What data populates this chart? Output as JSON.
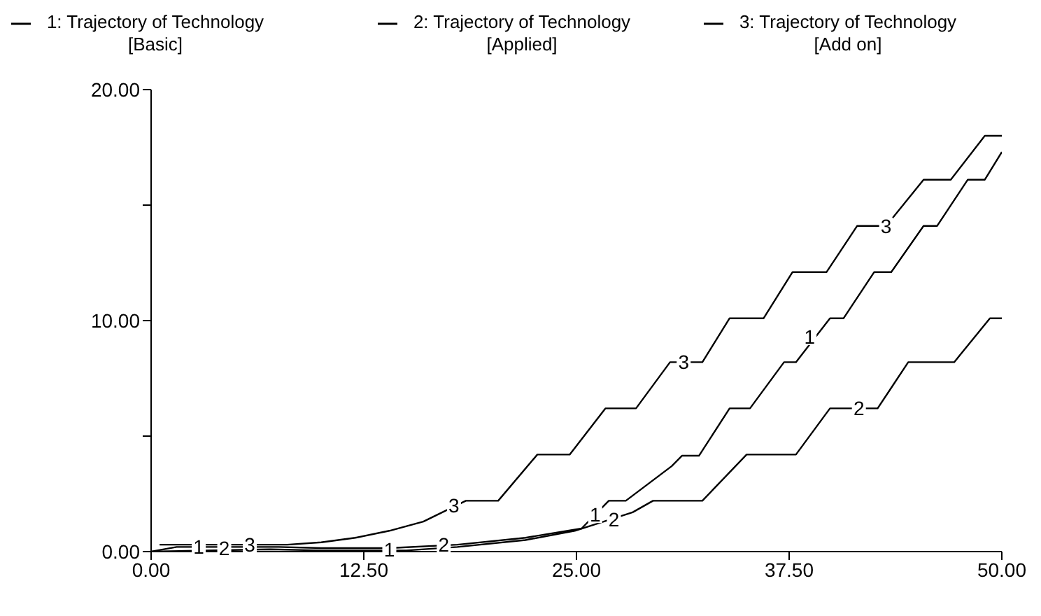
{
  "chart_data": {
    "type": "line",
    "legend": "top",
    "series": [
      {
        "name": "1: Trajectory of Technology [Basic]",
        "color": "#000000",
        "x": [
          0,
          1.5,
          7.5,
          10,
          14,
          18,
          22,
          25.3,
          26.9,
          27.9,
          30.6,
          31.2,
          32.2,
          34,
          35.2,
          37.2,
          37.9,
          39.9,
          40.7,
          42.5,
          43.5,
          45.4,
          46.2,
          48,
          49,
          50
        ],
        "values": [
          0,
          0.2,
          0.2,
          0.15,
          0.15,
          0.3,
          0.6,
          1.0,
          2.2,
          2.2,
          3.7,
          4.15,
          4.15,
          6.2,
          6.2,
          8.2,
          8.2,
          10.1,
          10.1,
          12.1,
          12.1,
          14.1,
          14.1,
          16.1,
          16.1,
          17.3
        ]
      },
      {
        "name": "2: Trajectory of Technology [Applied]",
        "color": "#000000",
        "x": [
          0,
          7,
          10,
          15,
          18,
          22,
          24.9,
          28.3,
          29.5,
          32.4,
          35,
          37.9,
          39.9,
          42.7,
          44.5,
          47.2,
          49.3,
          50
        ],
        "values": [
          0,
          0.1,
          0.05,
          0.05,
          0.2,
          0.5,
          0.9,
          1.7,
          2.2,
          2.2,
          4.2,
          4.2,
          6.2,
          6.2,
          8.2,
          8.2,
          10.1,
          10.1
        ]
      },
      {
        "name": "3: Trajectory of Technology [Add on]",
        "color": "#000000",
        "x": [
          0.5,
          8,
          10,
          12,
          14,
          16,
          18.5,
          20.4,
          22.7,
          24.6,
          26.7,
          28.5,
          30.5,
          32.4,
          34,
          36,
          37.7,
          39.7,
          41.5,
          43.2,
          45.4,
          47,
          49,
          50
        ],
        "values": [
          0.3,
          0.3,
          0.4,
          0.6,
          0.9,
          1.3,
          2.2,
          2.2,
          4.2,
          4.2,
          6.2,
          6.2,
          8.2,
          8.2,
          10.1,
          10.1,
          12.1,
          12.1,
          14.1,
          14.1,
          16.1,
          16.1,
          18,
          18
        ]
      }
    ],
    "xlim": [
      0,
      50
    ],
    "xticks": [
      {
        "value": 0,
        "label": "0.00"
      },
      {
        "value": 12.5,
        "label": "12.50"
      },
      {
        "value": 25,
        "label": "25.00"
      },
      {
        "value": 37.5,
        "label": "37.50"
      },
      {
        "value": 50,
        "label": "50.00"
      }
    ],
    "ylim": [
      0,
      20
    ],
    "yticks": [
      {
        "value": 0,
        "label": "0.00"
      },
      {
        "value": 5,
        "label": null
      },
      {
        "value": 10,
        "label": "10.00"
      },
      {
        "value": 15,
        "label": null
      },
      {
        "value": 20,
        "label": "20.00"
      }
    ],
    "grid": false,
    "annotations": [
      {
        "text": "1",
        "x": 2.8,
        "y": 0.2
      },
      {
        "text": "2",
        "x": 4.3,
        "y": 0.15
      },
      {
        "text": "3",
        "x": 5.8,
        "y": 0.3
      },
      {
        "text": "1",
        "x": 14,
        "y": 0.1
      },
      {
        "text": "2",
        "x": 17.2,
        "y": 0.3
      },
      {
        "text": "3",
        "x": 17.8,
        "y": 2.0
      },
      {
        "text": "1",
        "x": 26.1,
        "y": 1.6
      },
      {
        "text": "2",
        "x": 27.2,
        "y": 1.4
      },
      {
        "text": "3",
        "x": 31.3,
        "y": 8.2
      },
      {
        "text": "1",
        "x": 38.7,
        "y": 9.3
      },
      {
        "text": "2",
        "x": 41.6,
        "y": 6.2
      },
      {
        "text": "3",
        "x": 43.2,
        "y": 14.1
      }
    ]
  }
}
